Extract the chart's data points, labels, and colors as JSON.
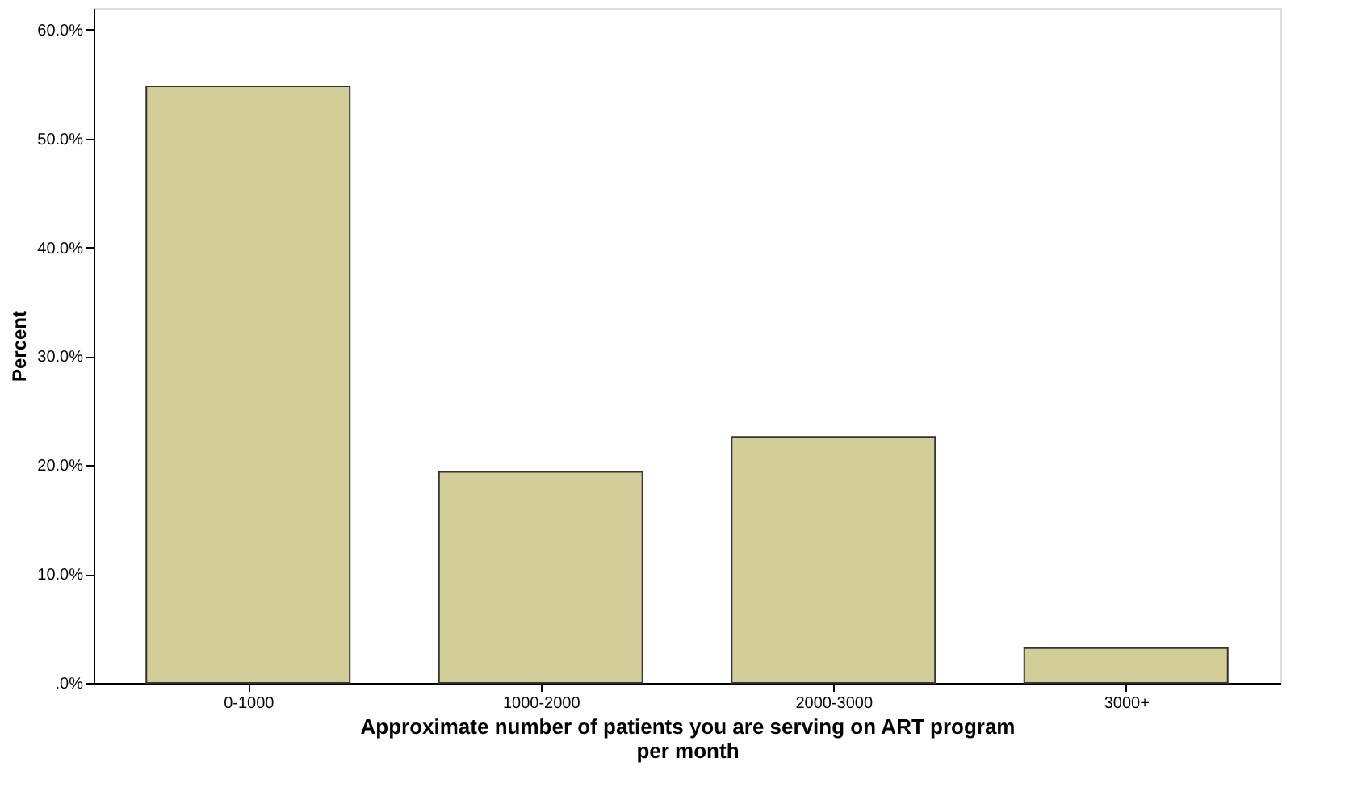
{
  "chart_data": {
    "type": "bar",
    "xlabel": "Approximate number of patients you are serving on ART program per month",
    "ylabel": "Percent",
    "categories": [
      "0-1000",
      "1000-2000",
      "2000-3000",
      "3000+"
    ],
    "values": [
      54.8,
      19.4,
      22.6,
      3.2
    ],
    "color": "#d3cd98",
    "ylim": [
      0,
      62
    ],
    "yticks": [
      {
        "value": 0,
        "label": ".0%"
      },
      {
        "value": 10,
        "label": "10.0%"
      },
      {
        "value": 20,
        "label": "20.0%"
      },
      {
        "value": 30,
        "label": "30.0%"
      },
      {
        "value": 40,
        "label": "40.0%"
      },
      {
        "value": 50,
        "label": "50.0%"
      },
      {
        "value": 60,
        "label": "60.0%"
      }
    ],
    "grid": false
  }
}
